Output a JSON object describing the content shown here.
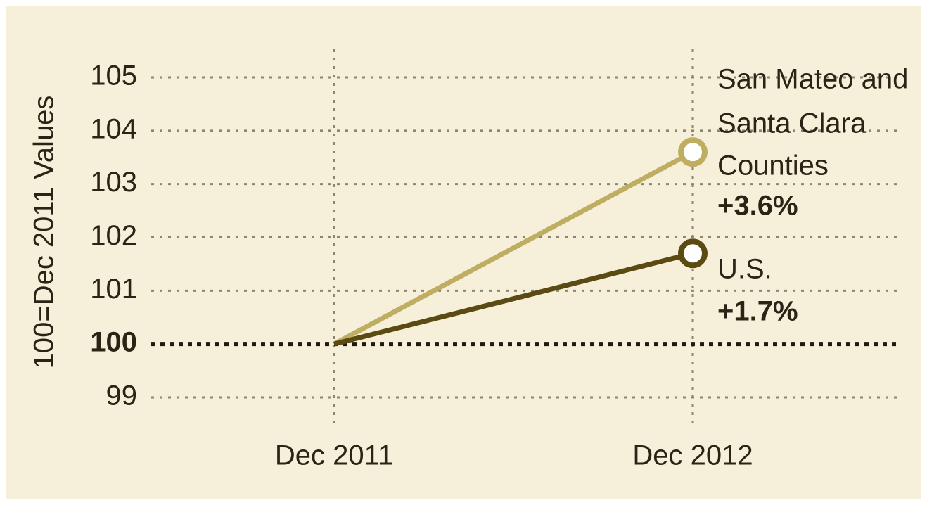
{
  "chart_data": {
    "type": "line",
    "y_label": "100=Dec 2011 Values",
    "categories": [
      "Dec 2011",
      "Dec 2012"
    ],
    "series": [
      {
        "name": [
          "San Mateo and",
          "Santa Clara",
          "Counties"
        ],
        "color": "#bfae62",
        "values": [
          100,
          103.6
        ],
        "change_label": "+3.6%"
      },
      {
        "name": [
          "U.S."
        ],
        "color": "#5b4b12",
        "values": [
          100,
          101.7
        ],
        "change_label": "+1.7%"
      }
    ],
    "ylim": [
      99,
      105
    ],
    "yticks": [
      99,
      100,
      101,
      102,
      103,
      104,
      105
    ],
    "baseline": 100,
    "grid": true
  }
}
